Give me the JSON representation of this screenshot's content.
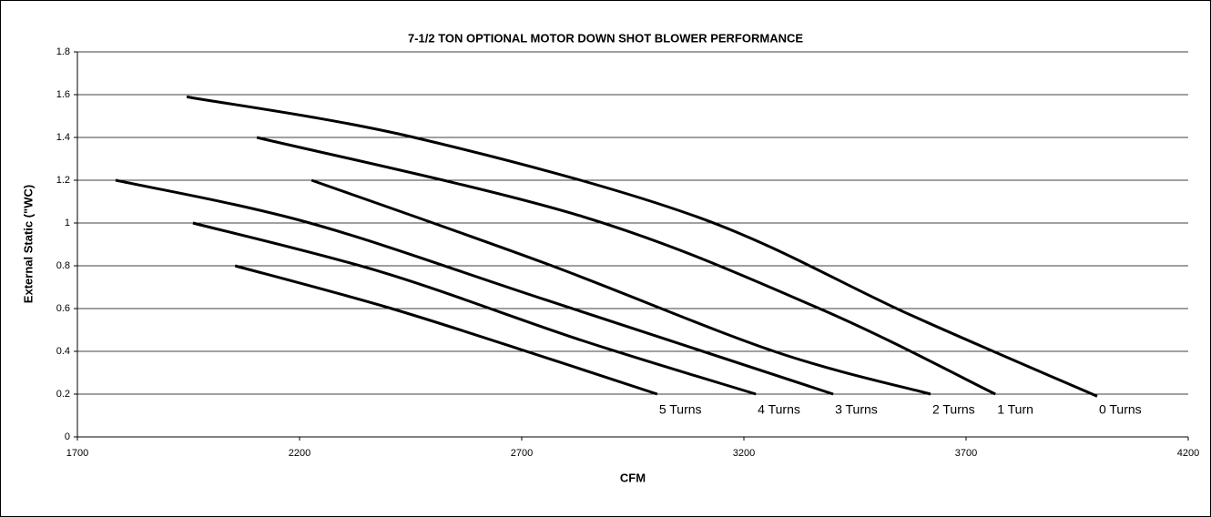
{
  "chart_data": {
    "type": "line",
    "title": "7-1/2 TON OPTIONAL MOTOR DOWN SHOT BLOWER PERFORMANCE",
    "xlabel": "CFM",
    "ylabel": "External Static (\"WC)",
    "xlim": [
      1700,
      4200
    ],
    "xticks": [
      1700,
      2200,
      2700,
      3200,
      3700,
      4200
    ],
    "ylim": [
      0,
      1.8
    ],
    "yticks": [
      0,
      0.2,
      0.4,
      0.6,
      0.8,
      1,
      1.2,
      1.4,
      1.6,
      1.8
    ],
    "grid": true,
    "color": "#000000",
    "series": [
      {
        "name": "0 Turns",
        "x": [
          1946,
          2458,
          3093,
          3575,
          3995
        ],
        "values": [
          1.59,
          1.4,
          1.03,
          0.57,
          0.19
        ]
      },
      {
        "name": "1 Turn",
        "x": [
          2104,
          2837,
          3370,
          3766
        ],
        "values": [
          1.4,
          1.03,
          0.6,
          0.2
        ]
      },
      {
        "name": "2 Turns",
        "x": [
          2227,
          2755,
          3268,
          3620
        ],
        "values": [
          1.2,
          0.81,
          0.4,
          0.2
        ]
      },
      {
        "name": "3 Turns",
        "x": [
          1786,
          2223,
          2755,
          3401
        ],
        "values": [
          1.2,
          1.0,
          0.64,
          0.2
        ]
      },
      {
        "name": "4 Turns",
        "x": [
          1960,
          2386,
          2837,
          3227
        ],
        "values": [
          1.0,
          0.77,
          0.45,
          0.2
        ]
      },
      {
        "name": "5 Turns",
        "x": [
          2055,
          2407,
          2755,
          3005
        ],
        "values": [
          0.8,
          0.6,
          0.37,
          0.2
        ]
      }
    ]
  }
}
